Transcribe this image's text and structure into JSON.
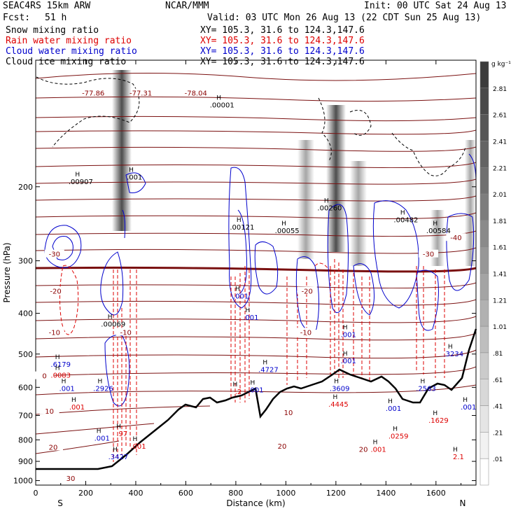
{
  "header": {
    "model": "SEAC4RS 15km ARW",
    "org": "NCAR/MMM",
    "init": "Init: 00 UTC Sat 24 Aug 13",
    "fcst_label": "Fcst:",
    "fcst_value": "51 h",
    "valid": "Valid: 03 UTC Mon 26 Aug 13 (22 CDT Sun 25 Aug 13)"
  },
  "fields": [
    {
      "name": "Snow mixing ratio",
      "xy": "XY= 105.3, 31.6 to 124.3,147.6",
      "color": "#000000"
    },
    {
      "name": "Rain water mixing ratio",
      "xy": "XY= 105.3, 31.6 to 124.3,147.6",
      "color": "#dd0000"
    },
    {
      "name": "Cloud water mixing ratio",
      "xy": "XY= 105.3, 31.6 to 124.3,147.6",
      "color": "#0000cc"
    },
    {
      "name": "Cloud ice mixing ratio",
      "xy": "XY= 105.3, 31.6 to 124.3,147.6",
      "color": "#000000"
    }
  ],
  "chart_data": {
    "type": "cross-section",
    "xlabel": "Distance (km)",
    "ylabel": "Pressure (hPa)",
    "xlim": [
      0,
      1760
    ],
    "ylim": [
      1025,
      100
    ],
    "y_scale": "log",
    "x_ticks": [
      0,
      200,
      400,
      600,
      800,
      1000,
      1200,
      1400,
      1600
    ],
    "y_ticks": [
      200,
      300,
      400,
      500,
      600,
      700,
      800,
      900,
      1000
    ],
    "end_labels": {
      "left": "S",
      "right": "N"
    },
    "colorbar": {
      "unit": "g kg⁻¹",
      "levels": [
        ".01",
        ".21",
        ".41",
        ".61",
        ".81",
        "1.01",
        "1.21",
        "1.41",
        "1.61",
        "1.81",
        "2.01",
        "2.21",
        "2.41",
        "2.61",
        "2.81"
      ]
    },
    "temperature_labels": [
      {
        "text": "-77.86",
        "x": 230,
        "p": 120
      },
      {
        "text": "-77.31",
        "x": 420,
        "p": 120
      },
      {
        "text": "-78.04",
        "x": 640,
        "p": 120
      },
      {
        "text": "-30",
        "x": 75,
        "p": 290
      },
      {
        "text": "-20",
        "x": 80,
        "p": 355
      },
      {
        "text": "-20",
        "x": 1085,
        "p": 355
      },
      {
        "text": "-10",
        "x": 75,
        "p": 445
      },
      {
        "text": "-10",
        "x": 360,
        "p": 445
      },
      {
        "text": "-10",
        "x": 1080,
        "p": 445
      },
      {
        "text": "-30",
        "x": 1570,
        "p": 290
      },
      {
        "text": "-40",
        "x": 1680,
        "p": 265
      },
      {
        "text": "0",
        "x": 35,
        "p": 565
      },
      {
        "text": "10",
        "x": 55,
        "p": 685
      },
      {
        "text": "10",
        "x": 1010,
        "p": 690
      },
      {
        "text": "20",
        "x": 70,
        "p": 835
      },
      {
        "text": "20",
        "x": 985,
        "p": 830
      },
      {
        "text": "20",
        "x": 1310,
        "p": 845
      },
      {
        "text": "30",
        "x": 140,
        "p": 990
      }
    ],
    "max_labels": [
      {
        "text": ".00907",
        "x": 180,
        "p": 195,
        "color": "#000000"
      },
      {
        "text": ".001",
        "x": 395,
        "p": 190,
        "color": "#000000"
      },
      {
        "text": ".00001",
        "x": 745,
        "p": 128,
        "color": "#000000"
      },
      {
        "text": ".00121",
        "x": 825,
        "p": 250,
        "color": "#000000"
      },
      {
        "text": ".00055",
        "x": 1005,
        "p": 255,
        "color": "#000000"
      },
      {
        "text": ".00260",
        "x": 1175,
        "p": 225,
        "color": "#000000"
      },
      {
        "text": ".00482",
        "x": 1480,
        "p": 240,
        "color": "#000000"
      },
      {
        "text": ".00584",
        "x": 1610,
        "p": 255,
        "color": "#000000"
      },
      {
        "text": ".00069",
        "x": 310,
        "p": 425,
        "color": "#000000"
      },
      {
        "text": ".6179",
        "x": 100,
        "p": 530,
        "color": "#0000cc"
      },
      {
        "text": ".001",
        "x": 820,
        "p": 365,
        "color": "#0000cc"
      },
      {
        "text": ".001",
        "x": 860,
        "p": 410,
        "color": "#0000cc"
      },
      {
        "text": ".001",
        "x": 1250,
        "p": 450,
        "color": "#0000cc"
      },
      {
        "text": ".001",
        "x": 1250,
        "p": 520,
        "color": "#0000cc"
      },
      {
        "text": ".3234",
        "x": 1670,
        "p": 500,
        "color": "#0000cc"
      },
      {
        "text": ".4727",
        "x": 930,
        "p": 545,
        "color": "#0000cc"
      },
      {
        "text": ".0083",
        "x": 100,
        "p": 562,
        "color": "#dd0000"
      },
      {
        "text": ".2926",
        "x": 270,
        "p": 605,
        "color": "#0000cc"
      },
      {
        "text": ".001",
        "x": 125,
        "p": 605,
        "color": "#0000cc"
      },
      {
        "text": ".001",
        "x": 165,
        "p": 670,
        "color": "#dd0000"
      },
      {
        "text": ".2",
        "x": 810,
        "p": 615,
        "color": "#dd0000"
      },
      {
        "text": ".001",
        "x": 880,
        "p": 610,
        "color": "#0000cc"
      },
      {
        "text": ".3609",
        "x": 1215,
        "p": 605,
        "color": "#0000cc"
      },
      {
        "text": ".2563",
        "x": 1560,
        "p": 605,
        "color": "#0000cc"
      },
      {
        "text": ".001",
        "x": 1730,
        "p": 670,
        "color": "#0000cc"
      },
      {
        "text": ".001",
        "x": 1430,
        "p": 675,
        "color": "#0000cc"
      },
      {
        "text": ".4445",
        "x": 1210,
        "p": 660,
        "color": "#dd0000"
      },
      {
        "text": ".1629",
        "x": 1610,
        "p": 720,
        "color": "#dd0000"
      },
      {
        "text": ".97",
        "x": 345,
        "p": 775,
        "color": "#dd0000"
      },
      {
        "text": ".0259",
        "x": 1450,
        "p": 785,
        "color": "#dd0000"
      },
      {
        "text": ".001",
        "x": 265,
        "p": 795,
        "color": "#0000cc"
      },
      {
        "text": ".001",
        "x": 410,
        "p": 830,
        "color": "#dd0000"
      },
      {
        "text": ".001",
        "x": 1370,
        "p": 845,
        "color": "#dd0000"
      },
      {
        "text": ".3427",
        "x": 330,
        "p": 880,
        "color": "#0000cc"
      },
      {
        "text": "2.1",
        "x": 1690,
        "p": 880,
        "color": "#dd0000"
      }
    ]
  }
}
